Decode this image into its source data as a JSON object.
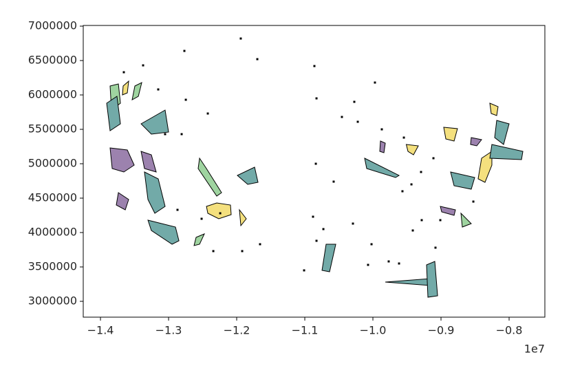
{
  "chart_data": {
    "type": "polygons",
    "xlim": [
      -1.4253,
      -0.7475
    ],
    "ylim": [
      2770000,
      7010000
    ],
    "xticks": [
      {
        "value": -1.4,
        "label": "−1.4"
      },
      {
        "value": -1.3,
        "label": "−1.3"
      },
      {
        "value": -1.2,
        "label": "−1.2"
      },
      {
        "value": -1.1,
        "label": "−1.1"
      },
      {
        "value": -1.0,
        "label": "−1.0"
      },
      {
        "value": -0.9,
        "label": "−0.9"
      },
      {
        "value": -0.8,
        "label": "−0.8"
      }
    ],
    "yticks": [
      3000000,
      3500000,
      4000000,
      4500000,
      5000000,
      5500000,
      6000000,
      6500000,
      7000000
    ],
    "x_offset_label": "1e7",
    "edge_color": "#000000",
    "shapes": [
      {
        "color": "#f4e07e",
        "x": [
          -1.2444,
          -1.2293,
          -1.2091,
          -1.2081,
          -1.2263,
          -1.2424
        ],
        "y": [
          4380000,
          4430000,
          4400000,
          4260000,
          4200000,
          4280000
        ]
      },
      {
        "color": "#72aaa8",
        "x": [
          -1.199,
          -1.1737,
          -1.1687,
          -1.1838
        ],
        "y": [
          4830000,
          4950000,
          4730000,
          4700000
        ]
      },
      {
        "color": "#f4e07e",
        "x": [
          -1.196,
          -1.1859,
          -1.1939
        ],
        "y": [
          4330000,
          4200000,
          4100000
        ]
      },
      {
        "color": "#72aaa8",
        "x": [
          -1.0687,
          -1.0545,
          -1.0636,
          -1.0747
        ],
        "y": [
          3830000,
          3830000,
          3430000,
          3450000
        ]
      },
      {
        "color": "#72aaa8",
        "x": [
          -1.0121,
          -0.9616,
          -0.9667,
          -1.0091
        ],
        "y": [
          5080000,
          4830000,
          4800000,
          4930000
        ]
      },
      {
        "color": "#72aaa8",
        "x": [
          -0.9818,
          -0.9162,
          -0.9162
        ],
        "y": [
          3280000,
          3330000,
          3230000
        ]
      },
      {
        "color": "#72aaa8",
        "x": [
          -0.9212,
          -0.9091,
          -0.905,
          -0.9192
        ],
        "y": [
          3530000,
          3580000,
          3080000,
          3060000
        ]
      },
      {
        "color": "#f4e07e",
        "x": [
          -0.8253,
          -0.8404,
          -0.8455,
          -0.8354,
          -0.8253
        ],
        "y": [
          5180000,
          5080000,
          4780000,
          4730000,
          4980000
        ]
      },
      {
        "color": "#72aaa8",
        "x": [
          -0.8253,
          -0.7798,
          -0.7818,
          -0.8283
        ],
        "y": [
          5280000,
          5180000,
          5060000,
          5080000
        ]
      },
      {
        "color": "#72aaa8",
        "x": [
          -0.8182,
          -0.8,
          -0.8081,
          -0.8212
        ],
        "y": [
          5630000,
          5580000,
          5280000,
          5380000
        ]
      },
      {
        "color": "#f4e07e",
        "x": [
          -0.8283,
          -0.8162,
          -0.8182,
          -0.8263
        ],
        "y": [
          5880000,
          5830000,
          5700000,
          5730000
        ]
      },
      {
        "color": "#f4e07e",
        "x": [
          -0.896,
          -0.8758,
          -0.8808,
          -0.8929
        ],
        "y": [
          5530000,
          5510000,
          5330000,
          5360000
        ]
      },
      {
        "color": "#9c82ae",
        "x": [
          -0.8556,
          -0.8404,
          -0.8475,
          -0.8566
        ],
        "y": [
          5380000,
          5350000,
          5260000,
          5280000
        ]
      },
      {
        "color": "#9fd4a0",
        "x": [
          -0.8707,
          -0.8556,
          -0.8687
        ],
        "y": [
          4280000,
          4130000,
          4080000
        ]
      },
      {
        "color": "#9c82ae",
        "x": [
          -0.901,
          -0.8788,
          -0.8808,
          -0.899
        ],
        "y": [
          4380000,
          4330000,
          4250000,
          4300000
        ]
      },
      {
        "color": "#f4e07e",
        "x": [
          -0.951,
          -0.9333,
          -0.9404,
          -0.9485
        ],
        "y": [
          5280000,
          5260000,
          5130000,
          5180000
        ]
      },
      {
        "color": "#72aaa8",
        "x": [
          -0.8859,
          -0.8505,
          -0.8556,
          -0.8808
        ],
        "y": [
          4880000,
          4800000,
          4630000,
          4680000
        ]
      },
      {
        "color": "#9c82ae",
        "x": [
          -0.9889,
          -0.9818,
          -0.9838,
          -0.9899
        ],
        "y": [
          5330000,
          5300000,
          5160000,
          5180000
        ]
      },
      {
        "color": "#9c82ae",
        "x": [
          -1.3859,
          -1.3606,
          -1.3505,
          -1.3657,
          -1.3828
        ],
        "y": [
          5230000,
          5200000,
          4980000,
          4880000,
          4930000
        ]
      },
      {
        "color": "#72aaa8",
        "x": [
          -1.3404,
          -1.3051,
          -1.3,
          -1.3253
        ],
        "y": [
          5580000,
          5780000,
          5460000,
          5430000
        ]
      },
      {
        "color": "#9fd4a0",
        "x": [
          -1.3859,
          -1.3737,
          -1.3707,
          -1.3838
        ],
        "y": [
          6130000,
          6160000,
          5880000,
          5780000
        ]
      },
      {
        "color": "#72aaa8",
        "x": [
          -1.3909,
          -1.3758,
          -1.3707,
          -1.3859
        ],
        "y": [
          5880000,
          5980000,
          5580000,
          5480000
        ]
      },
      {
        "color": "#9c82ae",
        "x": [
          -1.3404,
          -1.3253,
          -1.3182,
          -1.3354
        ],
        "y": [
          5180000,
          5130000,
          4880000,
          4930000
        ]
      },
      {
        "color": "#72aaa8",
        "x": [
          -1.3354,
          -1.3152,
          -1.3051,
          -1.3202,
          -1.3303
        ],
        "y": [
          4880000,
          4780000,
          4380000,
          4280000,
          4480000
        ]
      },
      {
        "color": "#9c82ae",
        "x": [
          -1.3737,
          -1.3586,
          -1.3636,
          -1.3768
        ],
        "y": [
          4580000,
          4480000,
          4330000,
          4400000
        ]
      },
      {
        "color": "#72aaa8",
        "x": [
          -1.3303,
          -1.2899,
          -1.2848,
          -1.2949,
          -1.3253
        ],
        "y": [
          4180000,
          4080000,
          3880000,
          3830000,
          4030000
        ]
      },
      {
        "color": "#9fd4a0",
        "x": [
          -1.2596,
          -1.2475,
          -1.2545,
          -1.2626
        ],
        "y": [
          3930000,
          3980000,
          3830000,
          3810000
        ]
      },
      {
        "color": "#9fd4a0",
        "x": [
          -1.2545,
          -1.2444,
          -1.2222,
          -1.2293,
          -1.2566
        ],
        "y": [
          5080000,
          4930000,
          4580000,
          4530000,
          4930000
        ]
      },
      {
        "color": "#9fd4a0",
        "x": [
          -1.3495,
          -1.3394,
          -1.3444,
          -1.3535
        ],
        "y": [
          6130000,
          6180000,
          5980000,
          5930000
        ]
      },
      {
        "color": "#f4e07e",
        "x": [
          -1.3667,
          -1.3586,
          -1.3606,
          -1.3677
        ],
        "y": [
          6130000,
          6200000,
          6030000,
          6000000
        ]
      }
    ],
    "dots": {
      "x": [
        -1.194,
        -1.2768,
        -1.1697,
        -1.0859,
        -0.997,
        -1.0273,
        -1.0828,
        -1.0455,
        -0.9869,
        -0.9545,
        -1.0222,
        -1.2747,
        -1.2424,
        -1.3051,
        -1.2808,
        -1.0838,
        -1.0576,
        -1.2869,
        -1.2515,
        -1.2242,
        -1.0879,
        -1.0727,
        -1.0293,
        -1.002,
        -1.0828,
        -0.9414,
        -0.9283,
        -0.901,
        -0.9434,
        -0.9293,
        -0.9111,
        -0.9566,
        -1.0071,
        -1.1657,
        -1.1919,
        -1.2343,
        -1.101,
        -0.9768,
        -0.9616,
        -0.8525,
        -0.9081,
        -1.3152,
        -1.3657,
        -1.3374
      ],
      "y": [
        6820000,
        6640000,
        6520000,
        6420000,
        6180000,
        5900000,
        5950000,
        5680000,
        5500000,
        5380000,
        5610000,
        5930000,
        5730000,
        5430000,
        5430000,
        5000000,
        4740000,
        4330000,
        4200000,
        4280000,
        4230000,
        4050000,
        4130000,
        3830000,
        3880000,
        4030000,
        4180000,
        4180000,
        4700000,
        4880000,
        5080000,
        4600000,
        3530000,
        3830000,
        3730000,
        3730000,
        3450000,
        3580000,
        3550000,
        4450000,
        3780000,
        6080000,
        6330000,
        6430000
      ]
    }
  }
}
